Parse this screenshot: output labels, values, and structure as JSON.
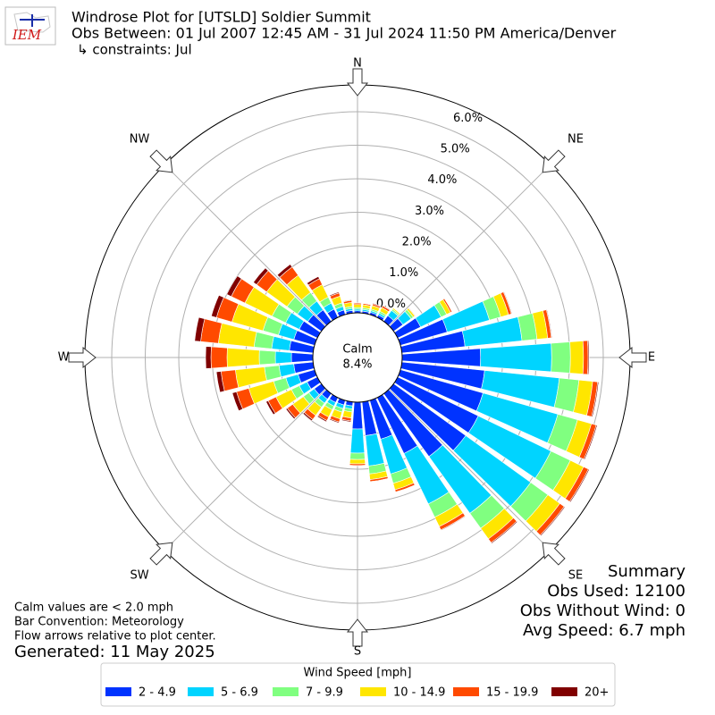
{
  "chart_data": {
    "type": "windrose",
    "logo_text": "IEM",
    "title": "Windrose Plot for [UTSLD] Soldier Summit",
    "subtitle": "Obs Between: 01 Jul 2007 12:45 AM - 31 Jul 2024 11:50 PM America/Denver",
    "constraints": "↳ constraints: Jul",
    "x": [
      0,
      10,
      20,
      30,
      40,
      50,
      60,
      70,
      80,
      90,
      100,
      110,
      120,
      130,
      140,
      150,
      160,
      170,
      180,
      190,
      200,
      210,
      220,
      230,
      240,
      250,
      260,
      270,
      280,
      290,
      300,
      310,
      320,
      330,
      340,
      350
    ],
    "compass_labels": [
      "N",
      "NE",
      "E",
      "SE",
      "S",
      "SW",
      "W",
      "NW"
    ],
    "ylim": [
      0,
      6.8
    ],
    "yticks": [
      {
        "value": 0,
        "label": "0.0%"
      },
      {
        "value": 1,
        "label": "1.0%"
      },
      {
        "value": 2,
        "label": "2.0%"
      },
      {
        "value": 3,
        "label": "3.0%"
      },
      {
        "value": 4,
        "label": "4.0%"
      },
      {
        "value": 5,
        "label": "5.0%"
      },
      {
        "value": 6,
        "label": "6.0%"
      }
    ],
    "grid": true,
    "calm_label": "Calm",
    "calm_value": 8.4,
    "calm_value_label": "8.4%",
    "series": [
      {
        "name": "2 - 4.9",
        "color": "#0033ff",
        "values": [
          0.06,
          0.06,
          0.07,
          0.08,
          0.21,
          0.34,
          0.76,
          1.45,
          1.89,
          2.34,
          2.48,
          2.56,
          2.67,
          2.65,
          2.31,
          1.85,
          1.2,
          1.01,
          0.8,
          0.12,
          0.14,
          0.16,
          0.2,
          0.26,
          0.34,
          0.51,
          0.58,
          0.64,
          0.71,
          0.64,
          0.6,
          0.5,
          0.42,
          0.27,
          0.14,
          0.08
        ]
      },
      {
        "name": "5 - 6.9",
        "color": "#00d4ff",
        "values": [
          0.05,
          0.05,
          0.05,
          0.06,
          0.19,
          0.3,
          0.68,
          1.31,
          1.71,
          2.12,
          2.24,
          2.32,
          2.41,
          2.39,
          2.09,
          1.67,
          1.08,
          0.91,
          0.72,
          0.09,
          0.11,
          0.12,
          0.15,
          0.2,
          0.26,
          0.38,
          0.44,
          0.48,
          0.53,
          0.48,
          0.45,
          0.38,
          0.32,
          0.2,
          0.11,
          0.06
        ]
      },
      {
        "name": "7 - 9.9",
        "color": "#80ff80",
        "values": [
          0.05,
          0.05,
          0.05,
          0.06,
          0.05,
          0.08,
          0.18,
          0.35,
          0.45,
          0.56,
          0.59,
          0.61,
          0.64,
          0.63,
          0.55,
          0.44,
          0.29,
          0.24,
          0.19,
          0.09,
          0.11,
          0.12,
          0.15,
          0.2,
          0.26,
          0.38,
          0.44,
          0.48,
          0.53,
          0.48,
          0.45,
          0.38,
          0.32,
          0.2,
          0.11,
          0.06
        ]
      },
      {
        "name": "10 - 14.9",
        "color": "#ffe600",
        "values": [
          0.09,
          0.09,
          0.11,
          0.12,
          0.04,
          0.06,
          0.13,
          0.24,
          0.32,
          0.39,
          0.41,
          0.43,
          0.44,
          0.44,
          0.39,
          0.31,
          0.2,
          0.17,
          0.13,
          0.18,
          0.21,
          0.24,
          0.3,
          0.39,
          0.51,
          0.77,
          0.87,
          0.96,
          1.07,
          0.96,
          0.9,
          0.75,
          0.63,
          0.41,
          0.21,
          0.12
        ]
      },
      {
        "name": "15 - 19.9",
        "color": "#ff4a00",
        "values": [
          0.04,
          0.04,
          0.05,
          0.06,
          0.01,
          0.02,
          0.05,
          0.09,
          0.11,
          0.14,
          0.15,
          0.15,
          0.16,
          0.16,
          0.14,
          0.11,
          0.07,
          0.06,
          0.05,
          0.09,
          0.1,
          0.12,
          0.15,
          0.2,
          0.26,
          0.38,
          0.43,
          0.48,
          0.53,
          0.48,
          0.45,
          0.37,
          0.31,
          0.2,
          0.1,
          0.06
        ]
      },
      {
        "name": "20+",
        "color": "#800000",
        "values": [
          0.01,
          0.01,
          0.02,
          0.02,
          0,
          0,
          0.01,
          0.02,
          0.02,
          0.03,
          0.03,
          0.03,
          0.03,
          0.03,
          0.03,
          0.02,
          0.01,
          0.01,
          0.01,
          0.03,
          0.03,
          0.04,
          0.05,
          0.05,
          0.07,
          0.13,
          0.14,
          0.16,
          0.18,
          0.16,
          0.15,
          0.12,
          0.1,
          0.07,
          0.03,
          0.02
        ]
      }
    ],
    "legend_title": "Wind Speed [mph]",
    "legend_position": "bottom",
    "notes_left": [
      "Calm values are < 2.0 mph",
      "Bar Convention: Meteorology",
      "Flow arrows relative to plot center."
    ],
    "generated": "Generated: 11 May 2025",
    "summary_title": "Summary",
    "summary_lines": [
      "Obs Used: 12100",
      "Obs Without Wind: 0",
      "Avg Speed: 6.7 mph"
    ]
  }
}
